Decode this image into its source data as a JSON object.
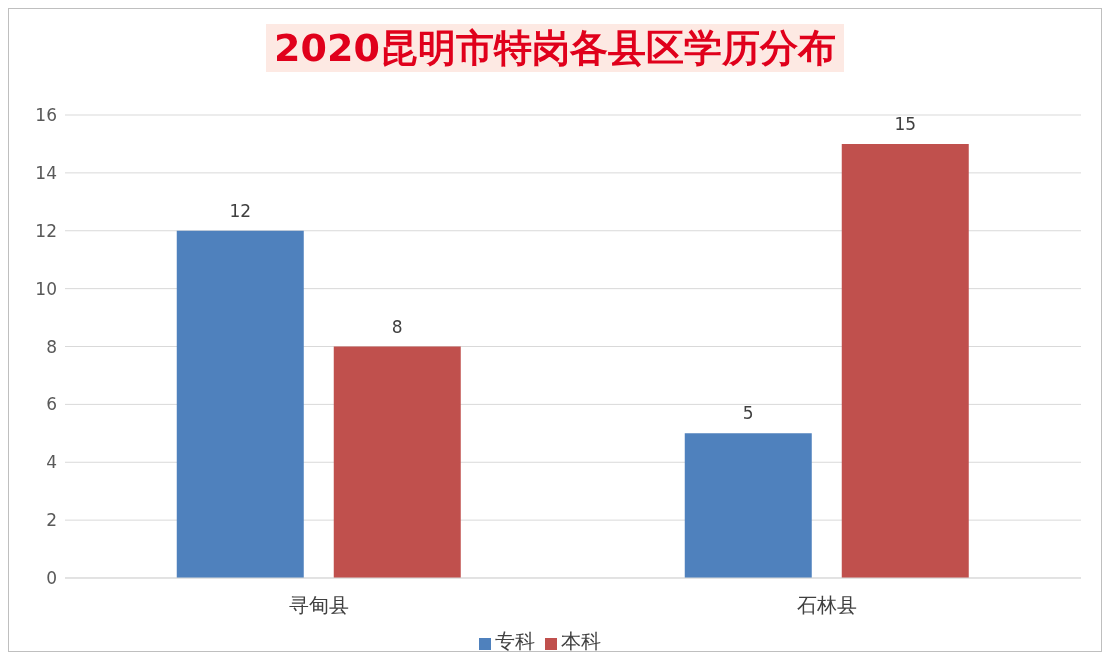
{
  "chart_data": {
    "type": "bar",
    "title": "2020昆明市特岗各县区学历分布",
    "categories": [
      "寻甸县",
      "石林县"
    ],
    "series": [
      {
        "name": "专科",
        "color": "#4f81bd",
        "values": [
          12,
          5
        ]
      },
      {
        "name": "本科",
        "color": "#c0504d",
        "values": [
          8,
          15
        ]
      }
    ],
    "ylim": [
      0,
      16
    ],
    "yticks": [
      0,
      2,
      4,
      6,
      8,
      10,
      12,
      14,
      16
    ],
    "grid": "y",
    "legend": "bottom",
    "data_labels": true
  }
}
